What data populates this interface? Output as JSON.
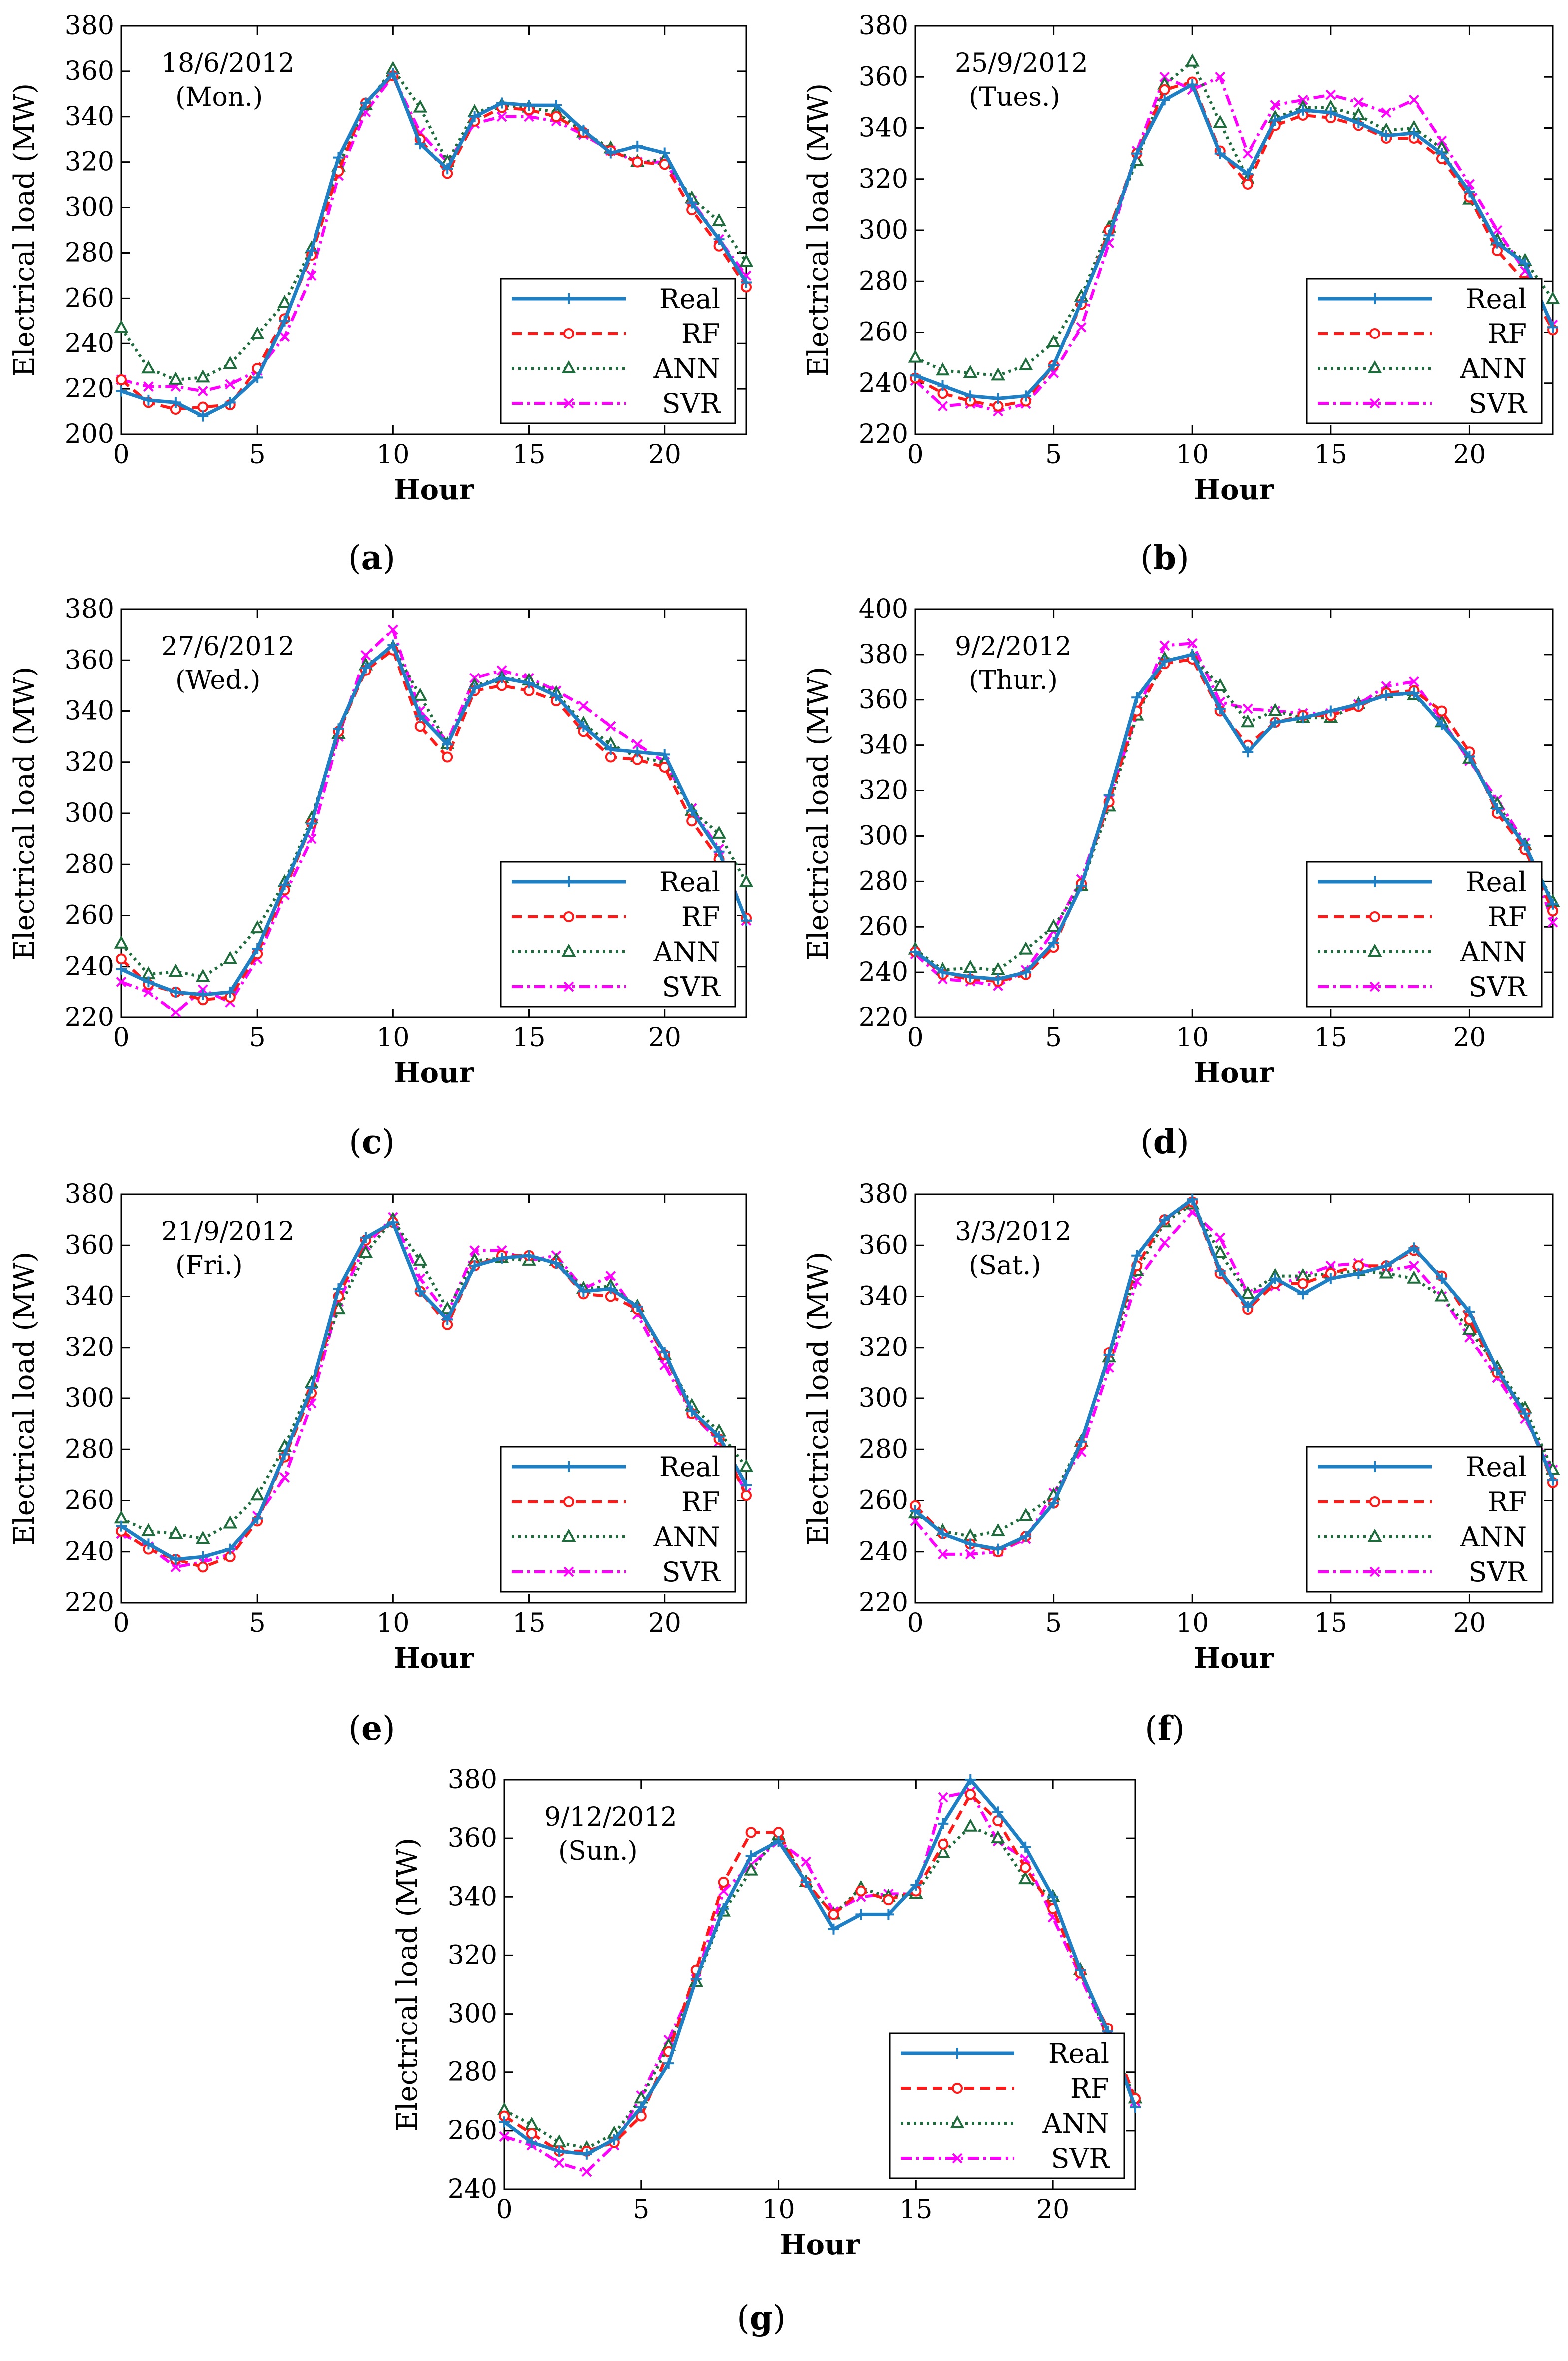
{
  "colors": {
    "real": "#1f7fc4",
    "rf": "#ff1a1a",
    "ann": "#1e6b3c",
    "svr": "#ff00ff"
  },
  "legend": [
    "Real",
    "RF",
    "ANN",
    "SVR"
  ],
  "chart_data": [
    {
      "type": "line",
      "panel": "a",
      "date": "18/6/2012",
      "day": "(Mon.)",
      "xlabel": "Hour",
      "ylabel": "Electrical load (MW)",
      "xlim": [
        0,
        23
      ],
      "ylim": [
        200,
        380
      ],
      "yticks": [
        200,
        220,
        240,
        260,
        280,
        300,
        320,
        340,
        360,
        380
      ],
      "xticks": [
        0,
        5,
        10,
        15,
        20
      ],
      "x": [
        0,
        1,
        2,
        3,
        4,
        5,
        6,
        7,
        8,
        9,
        10,
        11,
        12,
        13,
        14,
        15,
        16,
        17,
        18,
        19,
        20,
        21,
        22,
        23
      ],
      "series": [
        {
          "name": "Real",
          "values": [
            219,
            215,
            214,
            208,
            214,
            225,
            250,
            281,
            322,
            346,
            359,
            328,
            317,
            340,
            346,
            345,
            345,
            334,
            324,
            327,
            324,
            302,
            286,
            267
          ]
        },
        {
          "name": "RF",
          "values": [
            224,
            214,
            211,
            212,
            213,
            229,
            251,
            279,
            316,
            346,
            358,
            330,
            315,
            338,
            344,
            343,
            340,
            333,
            325,
            320,
            319,
            299,
            283,
            265
          ]
        },
        {
          "name": "ANN",
          "values": [
            247,
            229,
            224,
            225,
            231,
            244,
            258,
            282,
            318,
            345,
            361,
            344,
            320,
            342,
            345,
            344,
            342,
            333,
            326,
            320,
            321,
            304,
            294,
            276
          ]
        },
        {
          "name": "SVR",
          "values": [
            224,
            221,
            221,
            219,
            222,
            228,
            243,
            270,
            314,
            342,
            358,
            333,
            320,
            337,
            340,
            340,
            338,
            332,
            325,
            320,
            320,
            303,
            286,
            270
          ]
        }
      ]
    },
    {
      "type": "line",
      "panel": "b",
      "date": "25/9/2012",
      "day": "(Tues.)",
      "xlabel": "Hour",
      "ylabel": "Electrical load (MW)",
      "xlim": [
        0,
        23
      ],
      "ylim": [
        220,
        380
      ],
      "yticks": [
        220,
        240,
        260,
        280,
        300,
        320,
        340,
        360,
        380
      ],
      "xticks": [
        0,
        5,
        10,
        15,
        20
      ],
      "x": [
        0,
        1,
        2,
        3,
        4,
        5,
        6,
        7,
        8,
        9,
        10,
        11,
        12,
        13,
        14,
        15,
        16,
        17,
        18,
        19,
        20,
        21,
        22,
        23
      ],
      "series": [
        {
          "name": "Real",
          "values": [
            243,
            239,
            235,
            234,
            235,
            247,
            272,
            298,
            330,
            351,
            357,
            330,
            322,
            343,
            347,
            346,
            342,
            337,
            338,
            330,
            315,
            295,
            287,
            262
          ]
        },
        {
          "name": "RF",
          "values": [
            242,
            236,
            233,
            231,
            233,
            247,
            271,
            300,
            330,
            355,
            358,
            331,
            318,
            341,
            345,
            344,
            341,
            336,
            336,
            328,
            313,
            292,
            280,
            261
          ]
        },
        {
          "name": "ANN",
          "values": [
            250,
            245,
            244,
            243,
            247,
            256,
            274,
            301,
            327,
            357,
            366,
            342,
            320,
            344,
            348,
            348,
            345,
            339,
            340,
            332,
            312,
            296,
            288,
            273
          ]
        },
        {
          "name": "SVR",
          "values": [
            241,
            231,
            232,
            229,
            232,
            244,
            262,
            295,
            331,
            360,
            355,
            360,
            330,
            349,
            351,
            353,
            350,
            346,
            351,
            335,
            318,
            300,
            284,
            263
          ]
        }
      ]
    },
    {
      "type": "line",
      "panel": "c",
      "date": "27/6/2012",
      "day": "(Wed.)",
      "xlabel": "Hour",
      "ylabel": "Electrical load (MW)",
      "xlim": [
        0,
        23
      ],
      "ylim": [
        220,
        380
      ],
      "yticks": [
        220,
        240,
        260,
        280,
        300,
        320,
        340,
        360,
        380
      ],
      "xticks": [
        0,
        5,
        10,
        15,
        20
      ],
      "x": [
        0,
        1,
        2,
        3,
        4,
        5,
        6,
        7,
        8,
        9,
        10,
        11,
        12,
        13,
        14,
        15,
        16,
        17,
        18,
        19,
        20,
        21,
        22,
        23
      ],
      "series": [
        {
          "name": "Real",
          "values": [
            239,
            234,
            230,
            229,
            230,
            247,
            272,
            296,
            333,
            357,
            366,
            338,
            327,
            349,
            353,
            351,
            346,
            334,
            325,
            324,
            323,
            301,
            285,
            258
          ]
        },
        {
          "name": "RF",
          "values": [
            243,
            233,
            230,
            227,
            228,
            245,
            270,
            296,
            332,
            356,
            364,
            334,
            322,
            348,
            350,
            348,
            344,
            332,
            322,
            321,
            318,
            297,
            282,
            259
          ]
        },
        {
          "name": "ANN",
          "values": [
            249,
            237,
            238,
            236,
            243,
            255,
            273,
            298,
            331,
            358,
            365,
            346,
            327,
            350,
            353,
            352,
            347,
            335,
            327,
            322,
            320,
            301,
            292,
            273
          ]
        },
        {
          "name": "SVR",
          "values": [
            234,
            230,
            222,
            231,
            226,
            243,
            268,
            290,
            330,
            362,
            372,
            340,
            328,
            353,
            356,
            353,
            348,
            342,
            334,
            327,
            320,
            302,
            286,
            258
          ]
        }
      ]
    },
    {
      "type": "line",
      "panel": "d",
      "date": "9/2/2012",
      "day": "(Thur.)",
      "xlabel": "Hour",
      "ylabel": "Electrical load (MW)",
      "xlim": [
        0,
        23
      ],
      "ylim": [
        220,
        400
      ],
      "yticks": [
        220,
        240,
        260,
        280,
        300,
        320,
        340,
        360,
        380,
        400
      ],
      "xticks": [
        0,
        5,
        10,
        15,
        20
      ],
      "x": [
        0,
        1,
        2,
        3,
        4,
        5,
        6,
        7,
        8,
        9,
        10,
        11,
        12,
        13,
        14,
        15,
        16,
        17,
        18,
        19,
        20,
        21,
        22,
        23
      ],
      "series": [
        {
          "name": "Real",
          "values": [
            249,
            240,
            238,
            237,
            240,
            253,
            278,
            318,
            361,
            377,
            380,
            356,
            337,
            350,
            352,
            355,
            358,
            362,
            363,
            349,
            335,
            312,
            296,
            270
          ]
        },
        {
          "name": "RF",
          "values": [
            249,
            239,
            237,
            236,
            239,
            251,
            279,
            315,
            355,
            376,
            378,
            355,
            340,
            350,
            353,
            353,
            357,
            363,
            364,
            355,
            337,
            310,
            294,
            267
          ]
        },
        {
          "name": "ANN",
          "values": [
            250,
            241,
            242,
            241,
            250,
            260,
            278,
            313,
            353,
            378,
            379,
            366,
            350,
            355,
            352,
            352,
            358,
            363,
            362,
            350,
            334,
            314,
            296,
            271
          ]
        },
        {
          "name": "SVR",
          "values": [
            248,
            237,
            236,
            234,
            241,
            258,
            281,
            316,
            354,
            384,
            385,
            359,
            356,
            355,
            354,
            354,
            358,
            366,
            368,
            351,
            333,
            316,
            297,
            262
          ]
        }
      ]
    },
    {
      "type": "line",
      "panel": "e",
      "date": "21/9/2012",
      "day": "(Fri.)",
      "xlabel": "Hour",
      "ylabel": "Electrical load (MW)",
      "xlim": [
        0,
        23
      ],
      "ylim": [
        220,
        380
      ],
      "yticks": [
        220,
        240,
        260,
        280,
        300,
        320,
        340,
        360,
        380
      ],
      "xticks": [
        0,
        5,
        10,
        15,
        20
      ],
      "x": [
        0,
        1,
        2,
        3,
        4,
        5,
        6,
        7,
        8,
        9,
        10,
        11,
        12,
        13,
        14,
        15,
        16,
        17,
        18,
        19,
        20,
        21,
        22,
        23
      ],
      "series": [
        {
          "name": "Real",
          "values": [
            250,
            243,
            237,
            238,
            241,
            253,
            278,
            304,
            343,
            363,
            369,
            342,
            331,
            352,
            355,
            356,
            353,
            342,
            343,
            336,
            318,
            295,
            285,
            266
          ]
        },
        {
          "name": "RF",
          "values": [
            248,
            241,
            237,
            234,
            238,
            252,
            277,
            302,
            340,
            362,
            369,
            342,
            329,
            352,
            356,
            356,
            353,
            341,
            340,
            335,
            317,
            294,
            284,
            262
          ]
        },
        {
          "name": "ANN",
          "values": [
            253,
            248,
            247,
            245,
            251,
            262,
            281,
            306,
            335,
            357,
            370,
            354,
            335,
            354,
            355,
            354,
            354,
            343,
            344,
            336,
            317,
            297,
            287,
            273
          ]
        },
        {
          "name": "SVR",
          "values": [
            247,
            242,
            234,
            236,
            239,
            254,
            269,
            298,
            338,
            360,
            371,
            347,
            333,
            358,
            358,
            354,
            356,
            343,
            348,
            333,
            313,
            294,
            283,
            263
          ]
        }
      ]
    },
    {
      "type": "line",
      "panel": "f",
      "date": "3/3/2012",
      "day": "(Sat.)",
      "xlabel": "Hour",
      "ylabel": "Electrical load (MW)",
      "xlim": [
        0,
        23
      ],
      "ylim": [
        220,
        380
      ],
      "yticks": [
        220,
        240,
        260,
        280,
        300,
        320,
        340,
        360,
        380
      ],
      "xticks": [
        0,
        5,
        10,
        15,
        20
      ],
      "x": [
        0,
        1,
        2,
        3,
        4,
        5,
        6,
        7,
        8,
        9,
        10,
        11,
        12,
        13,
        14,
        15,
        16,
        17,
        18,
        19,
        20,
        21,
        22,
        23
      ],
      "series": [
        {
          "name": "Real",
          "values": [
            256,
            247,
            243,
            241,
            246,
            259,
            283,
            317,
            356,
            370,
            378,
            350,
            336,
            347,
            341,
            347,
            349,
            352,
            359,
            347,
            334,
            311,
            294,
            268
          ]
        },
        {
          "name": "RF",
          "values": [
            258,
            247,
            243,
            240,
            246,
            259,
            282,
            318,
            352,
            370,
            377,
            349,
            335,
            345,
            345,
            349,
            352,
            352,
            358,
            348,
            331,
            310,
            294,
            267
          ]
        },
        {
          "name": "ANN",
          "values": [
            255,
            248,
            246,
            248,
            254,
            262,
            283,
            316,
            350,
            369,
            376,
            357,
            341,
            348,
            348,
            349,
            350,
            349,
            347,
            340,
            327,
            312,
            296,
            272
          ]
        },
        {
          "name": "SVR",
          "values": [
            252,
            239,
            239,
            240,
            245,
            263,
            279,
            312,
            346,
            361,
            373,
            363,
            341,
            344,
            348,
            352,
            353,
            350,
            352,
            340,
            324,
            308,
            292,
            272
          ]
        }
      ]
    },
    {
      "type": "line",
      "panel": "g",
      "date": "9/12/2012",
      "day": "(Sun.)",
      "xlabel": "Hour",
      "ylabel": "Electrical load (MW)",
      "xlim": [
        0,
        23
      ],
      "ylim": [
        240,
        380
      ],
      "yticks": [
        240,
        260,
        280,
        300,
        320,
        340,
        360,
        380
      ],
      "xticks": [
        0,
        5,
        10,
        15,
        20
      ],
      "x": [
        0,
        1,
        2,
        3,
        4,
        5,
        6,
        7,
        8,
        9,
        10,
        11,
        12,
        13,
        14,
        15,
        16,
        17,
        18,
        19,
        20,
        21,
        22,
        23
      ],
      "series": [
        {
          "name": "Real",
          "values": [
            263,
            256,
            253,
            252,
            257,
            268,
            283,
            312,
            336,
            354,
            359,
            345,
            329,
            334,
            334,
            344,
            365,
            380,
            369,
            357,
            340,
            315,
            294,
            268
          ]
        },
        {
          "name": "RF",
          "values": [
            265,
            259,
            253,
            253,
            256,
            265,
            287,
            315,
            345,
            362,
            362,
            345,
            334,
            342,
            339,
            342,
            358,
            375,
            366,
            350,
            336,
            314,
            295,
            271
          ]
        },
        {
          "name": "ANN",
          "values": [
            267,
            262,
            256,
            254,
            259,
            271,
            289,
            311,
            335,
            349,
            361,
            345,
            334,
            343,
            340,
            341,
            355,
            364,
            360,
            346,
            340,
            315,
            292,
            271
          ]
        },
        {
          "name": "SVR",
          "values": [
            258,
            255,
            249,
            246,
            255,
            272,
            291,
            312,
            342,
            351,
            359,
            352,
            335,
            340,
            341,
            341,
            374,
            376,
            359,
            353,
            333,
            313,
            292,
            270
          ]
        }
      ]
    }
  ]
}
